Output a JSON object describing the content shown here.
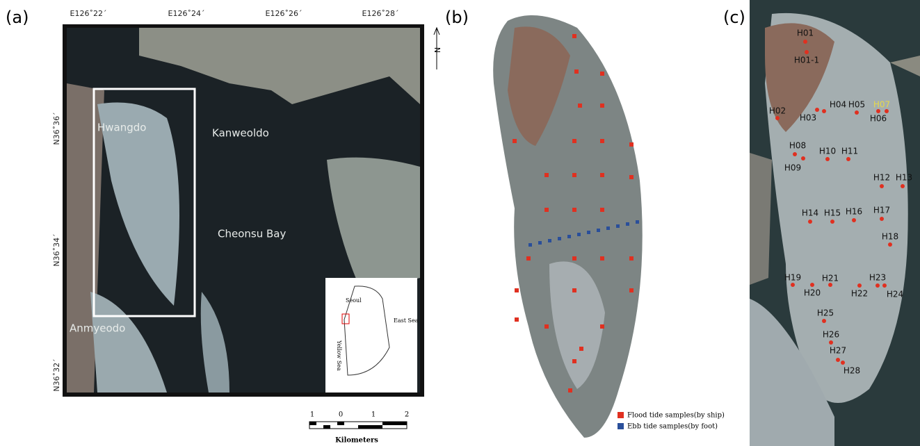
{
  "panels": {
    "a": {
      "label": "(a)",
      "lon_labels": [
        "E126˚22´",
        "E126˚24´",
        "E126˚26´",
        "E126˚28´"
      ],
      "lat_labels": [
        "N36˚36´",
        "N36˚34´",
        "N36˚32´"
      ],
      "places": [
        "Hwangdo",
        "Kanweoldo",
        "Cheonsu Bay",
        "Anmyeodo"
      ],
      "inset": [
        "Seoul",
        "East Sea",
        "Yellow Sea"
      ],
      "north": "N",
      "scale": {
        "ticks": [
          "1",
          "0",
          "1",
          "2"
        ],
        "unit": "Kilometers"
      }
    },
    "b": {
      "label": "(b)",
      "legend": [
        "Flood tide samples(by ship)",
        "Ebb tide samples(by foot)"
      ]
    },
    "c": {
      "label": "(c)",
      "stations": [
        "H01",
        "H01-1",
        "H02",
        "H03",
        "H04",
        "H05",
        "H06",
        "H07",
        "H08",
        "H09",
        "H10",
        "H11",
        "H12",
        "H13",
        "H14",
        "H15",
        "H16",
        "H17",
        "H18",
        "H19",
        "H20",
        "H21",
        "H22",
        "H23",
        "H24",
        "H25",
        "H26",
        "H27",
        "H28"
      ]
    }
  }
}
